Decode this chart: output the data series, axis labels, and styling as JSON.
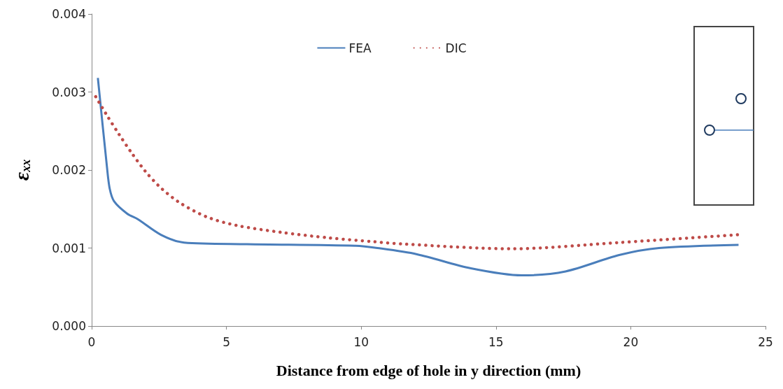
{
  "chart_data": {
    "type": "line",
    "xlabel": "Distance from edge of hole in y direction (mm)",
    "ylabel": "ε$_{xx}$",
    "xlim": [
      0,
      25
    ],
    "xticks": [
      0,
      5,
      10,
      15,
      20,
      25
    ],
    "ylim": [
      0,
      0.004
    ],
    "yticks": [
      {
        "value": 0,
        "label": "0.000"
      },
      {
        "value": 0.001,
        "label": "0.001"
      },
      {
        "value": 0.002,
        "label": "0.002"
      },
      {
        "value": 0.003,
        "label": "0.003"
      },
      {
        "value": 0.004,
        "label": "0.004"
      }
    ],
    "grid": false,
    "legend": "top",
    "marker": "none",
    "series": [
      {
        "name": "FEA",
        "color": "#4a7ebb",
        "line_style": "solid",
        "x": [
          0.23,
          0.57,
          0.67,
          0.83,
          1.32,
          1.71,
          2.57,
          3.43,
          5.76,
          9.76,
          10.6,
          12.07,
          14.07,
          15.97,
          17.58,
          19.57,
          21.05,
          24.0
        ],
        "values": [
          0.00318,
          0.00203,
          0.00176,
          0.0016,
          0.00144,
          0.00137,
          0.00117,
          0.00107,
          0.00105,
          0.00103,
          0.001,
          0.00092,
          0.00074,
          0.00065,
          0.0007,
          0.00091,
          0.001,
          0.00104
        ]
      },
      {
        "name": "DIC",
        "color": "#be4b48",
        "line_style": "dotted",
        "x": [
          0.15,
          0.55,
          1.01,
          1.48,
          2.0,
          2.57,
          3.27,
          4.26,
          5.37,
          7.06,
          8.8,
          10.5,
          11.6,
          15.58,
          19.57,
          23.96
        ],
        "values": [
          0.00294,
          0.00271,
          0.00246,
          0.00222,
          0.00198,
          0.00177,
          0.00158,
          0.0014,
          0.00129,
          0.0012,
          0.00113,
          0.00108,
          0.00105,
          0.00099,
          0.00107,
          0.00117
        ]
      }
    ]
  }
}
